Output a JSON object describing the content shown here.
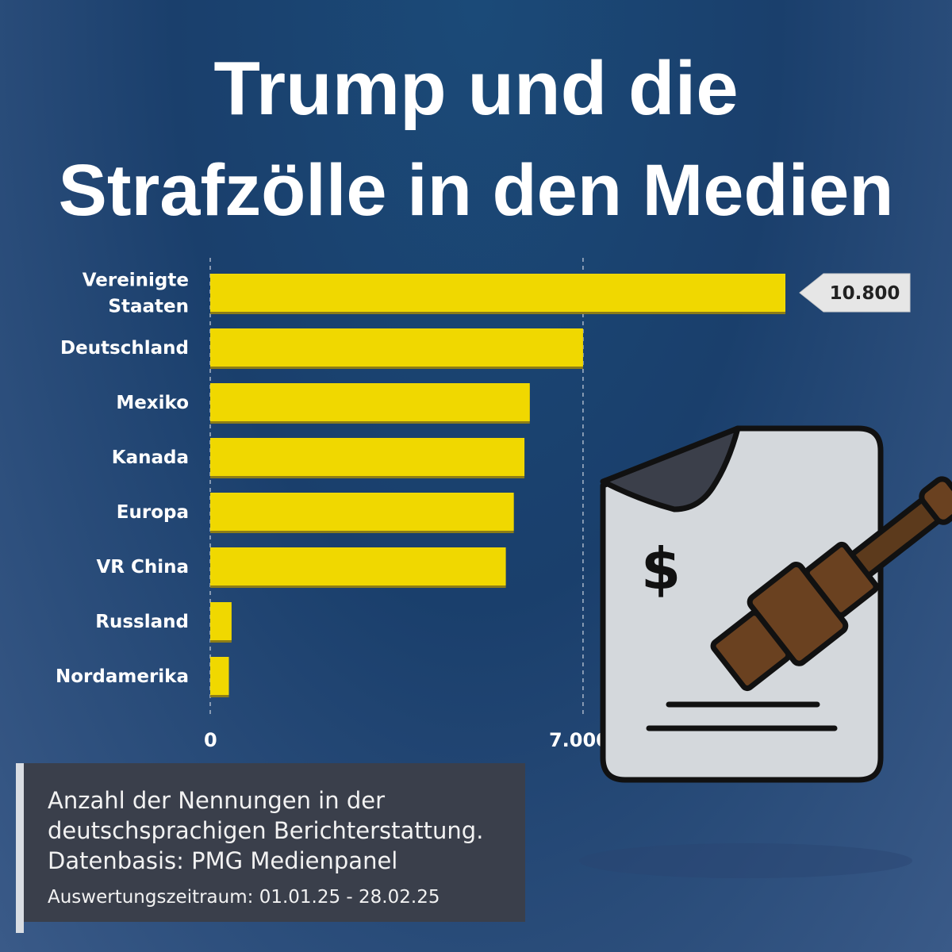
{
  "title": {
    "line1": "Trump und die",
    "line2": "Strafzölle in den Medien"
  },
  "chart_data": {
    "type": "bar",
    "orientation": "horizontal",
    "categories": [
      "Vereinigte Staaten",
      "Deutschland",
      "Mexiko",
      "Kanada",
      "Europa",
      "VR China",
      "Russland",
      "Nordamerika"
    ],
    "category_lines": [
      [
        "Vereinigte",
        "Staaten"
      ],
      [
        "Deutschland"
      ],
      [
        "Mexiko"
      ],
      [
        "Kanada"
      ],
      [
        "Europa"
      ],
      [
        "VR China"
      ],
      [
        "Russland"
      ],
      [
        "Nordamerika"
      ]
    ],
    "values": [
      10800,
      7000,
      6000,
      5900,
      5700,
      5550,
      400,
      350
    ],
    "xlim": [
      0,
      10800
    ],
    "ticks": [
      {
        "value": 0,
        "label": "0"
      },
      {
        "value": 7000,
        "label": "7.000"
      }
    ],
    "callout": {
      "value": 10800,
      "label": "10.800"
    },
    "grid": "dashed vertical lines at ticks",
    "bar_color": "#f0d800"
  },
  "caption": {
    "lines": [
      "Anzahl der Nennungen in der",
      "deutschsprachigen Berichterstattung.",
      "Datenbasis: PMG Medienpanel"
    ],
    "period": "Auswertungszeitraum: 01.01.25 - 28.02.25"
  },
  "illustration": {
    "icons": [
      "document-icon",
      "dollar-icon",
      "gavel-icon"
    ],
    "dollar_symbol": "$"
  }
}
